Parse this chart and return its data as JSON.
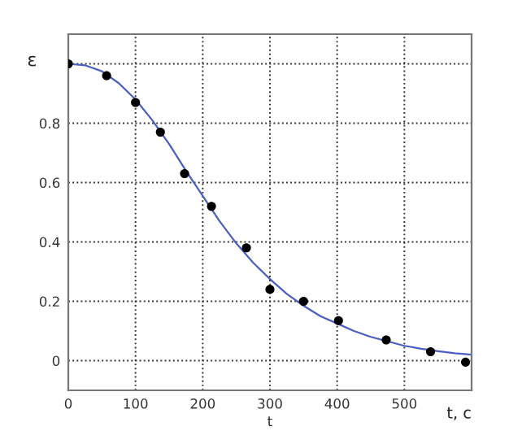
{
  "chart_data": {
    "type": "scatter",
    "xlabel": "t",
    "ylabel": "ε",
    "annotations": [
      "t, c"
    ],
    "xlim": [
      0,
      600
    ],
    "ylim": [
      -0.1,
      1.1
    ],
    "xticks": [
      0,
      100,
      200,
      300,
      400,
      500,
      {
        "value": 600,
        "label": null
      }
    ],
    "yticks": [
      0,
      0.2,
      0.4,
      0.6,
      0.8,
      {
        "value": 1.0,
        "label": null
      }
    ],
    "grid": true,
    "series": [
      {
        "color": "#000000",
        "marker": "circle",
        "x": [
          0,
          57,
          100,
          137,
          173,
          213,
          265,
          300,
          350,
          402,
          473,
          539,
          591
        ],
        "values": [
          1.0,
          0.96,
          0.87,
          0.77,
          0.63,
          0.52,
          0.38,
          0.24,
          0.2,
          0.135,
          0.07,
          0.03,
          -0.005
        ]
      },
      {
        "type": "line",
        "color": "#4a5fc1",
        "marker": "none",
        "line_style": "solid",
        "x": [
          0,
          25,
          50,
          75,
          100,
          125,
          150,
          175,
          200,
          225,
          250,
          275,
          300,
          325,
          350,
          375,
          400,
          425,
          450,
          475,
          500,
          525,
          550,
          575,
          600
        ],
        "values": [
          1.0,
          0.995,
          0.975,
          0.935,
          0.88,
          0.81,
          0.73,
          0.64,
          0.555,
          0.47,
          0.395,
          0.33,
          0.275,
          0.225,
          0.185,
          0.15,
          0.125,
          0.1,
          0.08,
          0.065,
          0.05,
          0.04,
          0.032,
          0.025,
          0.02
        ]
      }
    ]
  }
}
